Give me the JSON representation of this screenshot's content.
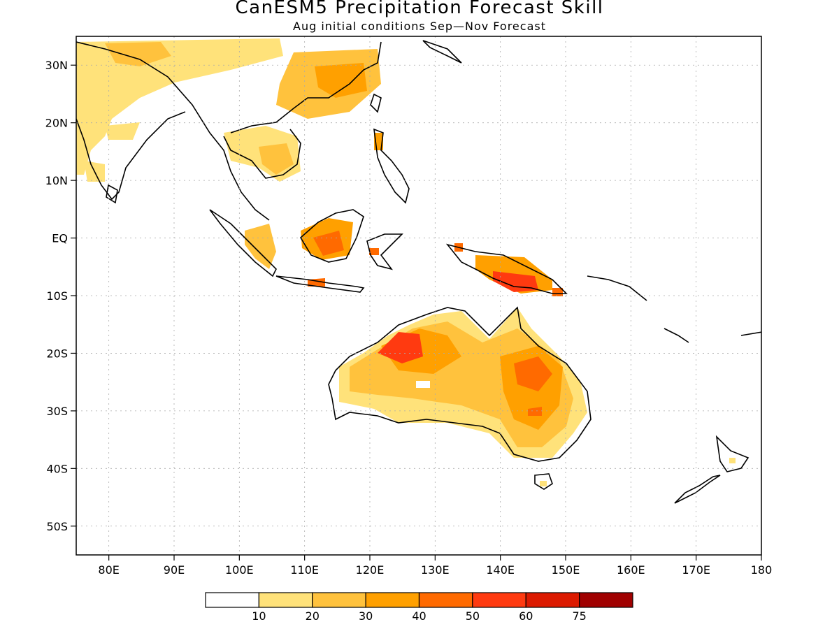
{
  "title": "CanESM5 Precipitation Forecast Skill",
  "subtitle": "Aug initial conditions  Sep—Nov Forecast",
  "map": {
    "lon_range": [
      75,
      180
    ],
    "lat_range": [
      -55,
      35
    ],
    "lat_ticks": [
      {
        "value": 30,
        "label": "30N"
      },
      {
        "value": 20,
        "label": "20N"
      },
      {
        "value": 10,
        "label": "10N"
      },
      {
        "value": 0,
        "label": "EQ"
      },
      {
        "value": -10,
        "label": "10S"
      },
      {
        "value": -20,
        "label": "20S"
      },
      {
        "value": -30,
        "label": "30S"
      },
      {
        "value": -40,
        "label": "40S"
      },
      {
        "value": -50,
        "label": "50S"
      }
    ],
    "lon_ticks": [
      {
        "value": 80,
        "label": "80E"
      },
      {
        "value": 90,
        "label": "90E"
      },
      {
        "value": 100,
        "label": "100E"
      },
      {
        "value": 110,
        "label": "110E"
      },
      {
        "value": 120,
        "label": "120E"
      },
      {
        "value": 130,
        "label": "130E"
      },
      {
        "value": 140,
        "label": "140E"
      },
      {
        "value": 150,
        "label": "150E"
      },
      {
        "value": 160,
        "label": "160E"
      },
      {
        "value": 170,
        "label": "170E"
      },
      {
        "value": 180,
        "label": "180"
      }
    ],
    "grid": "dotted"
  },
  "colorbar": {
    "bins": [
      {
        "color": "#ffffff"
      },
      {
        "color": "#ffe27a"
      },
      {
        "color": "#ffc23d"
      },
      {
        "color": "#ffa000"
      },
      {
        "color": "#ff6a00"
      },
      {
        "color": "#ff3a10"
      },
      {
        "color": "#dc1a00"
      },
      {
        "color": "#a00000"
      }
    ],
    "labels": [
      "10",
      "20",
      "30",
      "40",
      "50",
      "60",
      "75"
    ]
  }
}
